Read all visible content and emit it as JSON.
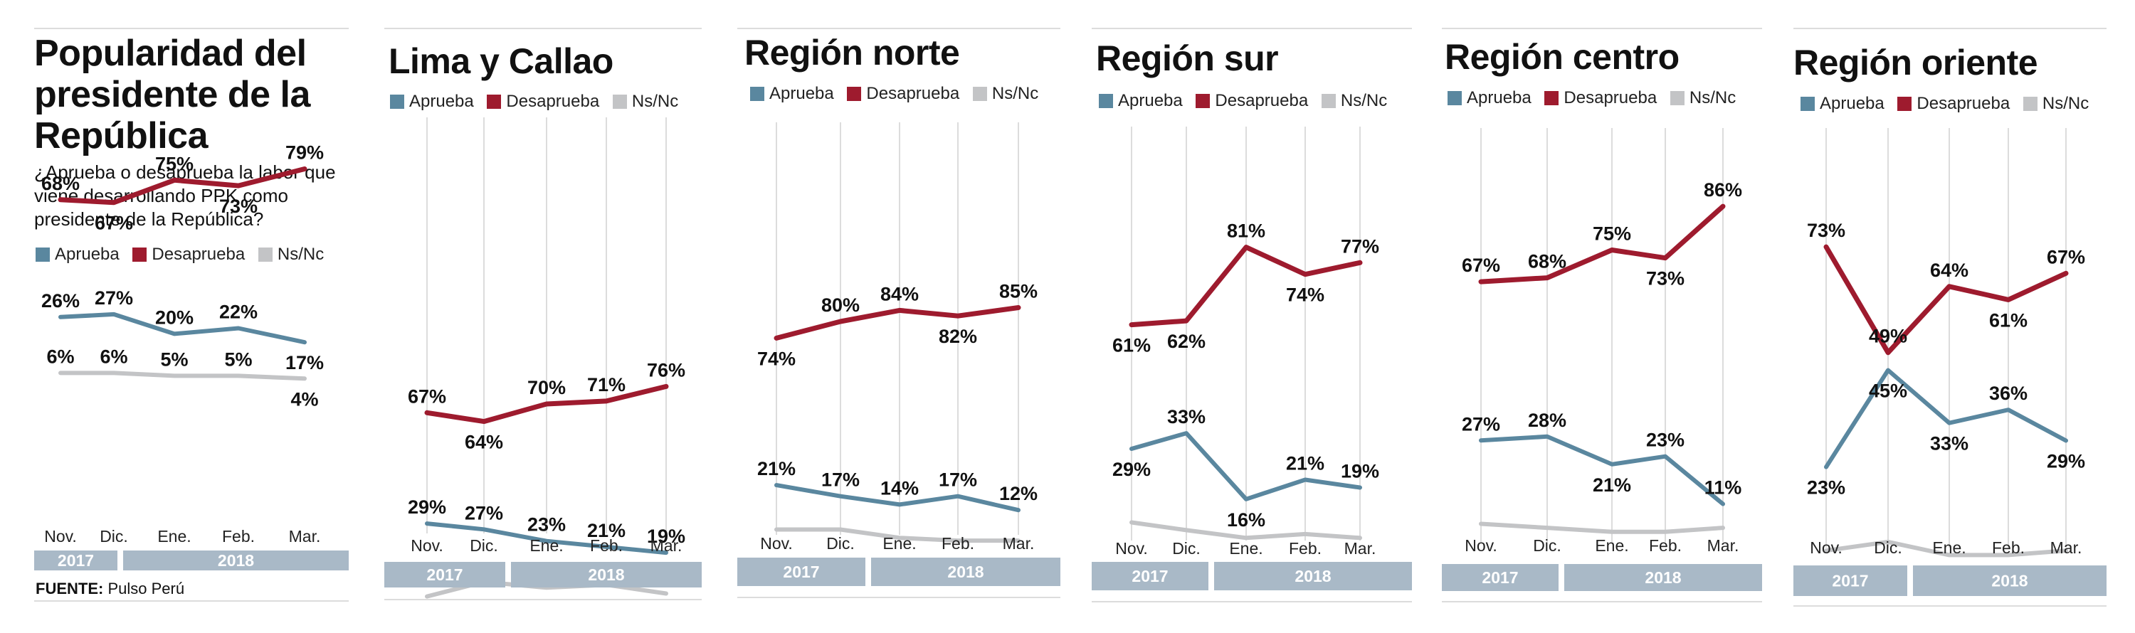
{
  "colors": {
    "aprueba": "#5a879f",
    "desaprueba": "#9e1b2e",
    "nsnc": "#c3c4c6",
    "year_bar": "#a9b9c7",
    "grid": "#dcdcdc"
  },
  "legend": {
    "aprueba": "Aprueba",
    "desaprueba": "Desaprueba",
    "nsnc": "Ns/Nc"
  },
  "intro": {
    "title": "Popularidad del presidente de la República",
    "question": "¿Aprueba o desaprueba la labor que viene desarrollando PPK como presidente de la República?",
    "source_label": "FUENTE:",
    "source_text": "Pulso Perú"
  },
  "chart_data": [
    {
      "type": "line",
      "title": "Popularidad del presidente de la República",
      "categories": [
        "Nov.",
        "Dic.",
        "Ene.",
        "Feb.",
        "Mar."
      ],
      "years": [
        "2017",
        "2018"
      ],
      "ylim": [
        0,
        100
      ],
      "series": [
        {
          "name": "Aprueba",
          "values": [
            26,
            27,
            20,
            22,
            17
          ],
          "labels": [
            "26%",
            "27%",
            "20%",
            "22%",
            "17%"
          ]
        },
        {
          "name": "Desaprueba",
          "values": [
            68,
            67,
            75,
            73,
            79
          ],
          "labels": [
            "68%",
            "67%",
            "75%",
            "73%",
            "79%"
          ]
        },
        {
          "name": "Ns/Nc",
          "values": [
            6,
            6,
            5,
            5,
            4
          ],
          "labels": [
            "6%",
            "6%",
            "5%",
            "5%",
            "4%"
          ]
        }
      ]
    },
    {
      "type": "line",
      "title": "Lima y Callao",
      "categories": [
        "Nov.",
        "Dic.",
        "Ene.",
        "Feb.",
        "Mar."
      ],
      "years": [
        "2017",
        "2018"
      ],
      "ylim": [
        0,
        100
      ],
      "series": [
        {
          "name": "Aprueba",
          "values": [
            29,
            27,
            23,
            21,
            19
          ],
          "labels": [
            "29%",
            "27%",
            "23%",
            "21%",
            "19%"
          ]
        },
        {
          "name": "Desaprueba",
          "values": [
            67,
            64,
            70,
            71,
            76
          ],
          "labels": [
            "67%",
            "64%",
            "70%",
            "71%",
            "76%"
          ]
        },
        {
          "name": "Ns/Nc",
          "values": [
            4,
            9,
            7,
            8,
            5
          ],
          "labels": []
        }
      ]
    },
    {
      "type": "line",
      "title": "Región norte",
      "categories": [
        "Nov.",
        "Dic.",
        "Ene.",
        "Feb.",
        "Mar."
      ],
      "years": [
        "2017",
        "2018"
      ],
      "ylim": [
        0,
        100
      ],
      "series": [
        {
          "name": "Aprueba",
          "values": [
            21,
            17,
            14,
            17,
            12
          ],
          "labels": [
            "21%",
            "17%",
            "14%",
            "17%",
            "12%"
          ]
        },
        {
          "name": "Desaprueba",
          "values": [
            74,
            80,
            84,
            82,
            85
          ],
          "labels": [
            "74%",
            "80%",
            "84%",
            "82%",
            "85%"
          ]
        },
        {
          "name": "Ns/Nc",
          "values": [
            5,
            5,
            2,
            1,
            1
          ],
          "labels": []
        }
      ]
    },
    {
      "type": "line",
      "title": "Región sur",
      "categories": [
        "Nov.",
        "Dic.",
        "Ene.",
        "Feb.",
        "Mar."
      ],
      "years": [
        "2017",
        "2018"
      ],
      "ylim": [
        0,
        100
      ],
      "series": [
        {
          "name": "Aprueba",
          "values": [
            29,
            33,
            16,
            21,
            19
          ],
          "labels": [
            "29%",
            "33%",
            "16%",
            "21%",
            "19%"
          ]
        },
        {
          "name": "Desaprueba",
          "values": [
            61,
            62,
            81,
            74,
            77
          ],
          "labels": [
            "61%",
            "62%",
            "81%",
            "74%",
            "77%"
          ]
        },
        {
          "name": "Ns/Nc",
          "values": [
            10,
            8,
            6,
            7,
            6
          ],
          "labels": []
        }
      ]
    },
    {
      "type": "line",
      "title": "Región centro",
      "categories": [
        "Nov.",
        "Dic.",
        "Ene.",
        "Feb.",
        "Mar."
      ],
      "years": [
        "2017",
        "2018"
      ],
      "ylim": [
        0,
        100
      ],
      "series": [
        {
          "name": "Aprueba",
          "values": [
            27,
            28,
            21,
            23,
            11
          ],
          "labels": [
            "27%",
            "28%",
            "21%",
            "23%",
            "11%"
          ]
        },
        {
          "name": "Desaprueba",
          "values": [
            67,
            68,
            75,
            73,
            86
          ],
          "labels": [
            "67%",
            "68%",
            "75%",
            "73%",
            "86%"
          ]
        },
        {
          "name": "Ns/Nc",
          "values": [
            6,
            5,
            4,
            4,
            5
          ],
          "labels": []
        }
      ]
    },
    {
      "type": "line",
      "title": "Región oriente",
      "categories": [
        "Nov.",
        "Dic.",
        "Ene.",
        "Feb.",
        "Mar."
      ],
      "years": [
        "2017",
        "2018"
      ],
      "ylim": [
        0,
        100
      ],
      "series": [
        {
          "name": "Aprueba",
          "values": [
            23,
            45,
            33,
            36,
            29
          ],
          "labels": [
            "23%",
            "45%",
            "33%",
            "36%",
            "29%"
          ]
        },
        {
          "name": "Desaprueba",
          "values": [
            73,
            49,
            64,
            61,
            67
          ],
          "labels": [
            "73%",
            "49%",
            "64%",
            "61%",
            "67%"
          ]
        },
        {
          "name": "Ns/Nc",
          "values": [
            4,
            6,
            3,
            3,
            4
          ],
          "labels": []
        }
      ]
    }
  ]
}
